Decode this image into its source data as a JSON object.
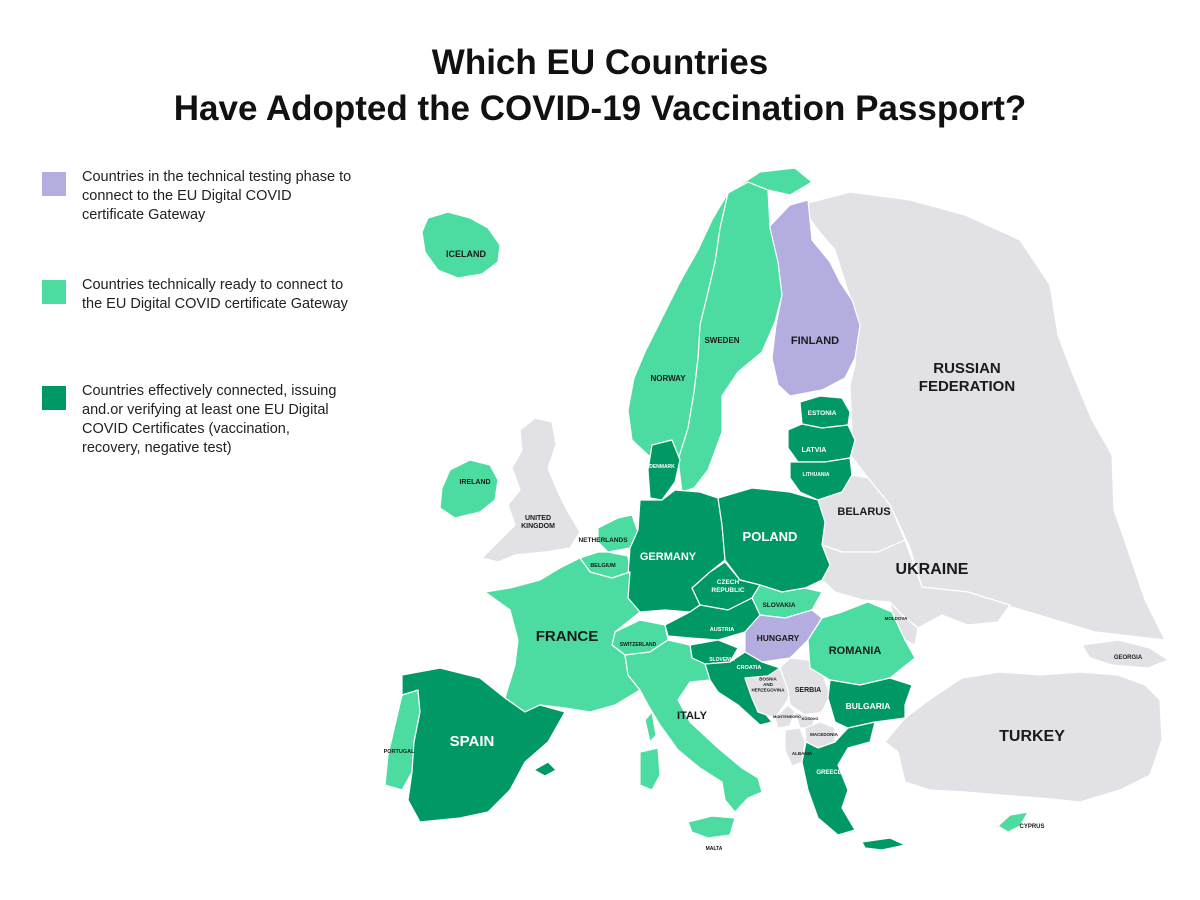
{
  "title": {
    "line1": "Which EU Countries",
    "line2": "Have Adopted the COVID-19 Vaccination Passport?"
  },
  "colors": {
    "testing": "#b4addf",
    "ready": "#4cdba0",
    "connected": "#009966",
    "other": "#e2e2e6"
  },
  "legend": [
    {
      "status": "testing",
      "text": "Countries in the technical testing phase to connect to the EU Digital COVID certificate Gateway"
    },
    {
      "status": "ready",
      "text": "Countries technically ready to connect to the EU Digital COVID certificate Gateway"
    },
    {
      "status": "connected",
      "text": "Countries effectively connected, issuing and.or verifying at least one EU Digital COVID Certificates (vaccination, recovery, negative test)"
    }
  ],
  "countries": {
    "iceland": {
      "label": "ICELAND",
      "status": "ready"
    },
    "ireland": {
      "label": "IRELAND",
      "status": "ready"
    },
    "uk": {
      "label": "UNITED KINGDOM",
      "status": "other"
    },
    "norway": {
      "label": "NORWAY",
      "status": "ready"
    },
    "sweden": {
      "label": "SWEDEN",
      "status": "ready"
    },
    "finland": {
      "label": "FINLAND",
      "status": "testing"
    },
    "russia": {
      "label": "RUSSIAN FEDERATION",
      "status": "other"
    },
    "estonia": {
      "label": "ESTONIA",
      "status": "connected"
    },
    "latvia": {
      "label": "LATVIA",
      "status": "connected"
    },
    "lithuania": {
      "label": "LITHUANIA",
      "status": "connected"
    },
    "denmark": {
      "label": "DENMARK",
      "status": "connected"
    },
    "netherlands": {
      "label": "NETHERLANDS",
      "status": "ready"
    },
    "belgium": {
      "label": "BELGIUM",
      "status": "ready"
    },
    "germany": {
      "label": "GERMANY",
      "status": "connected"
    },
    "poland": {
      "label": "POLAND",
      "status": "connected"
    },
    "belarus": {
      "label": "BELARUS",
      "status": "other"
    },
    "ukraine": {
      "label": "UKRAINE",
      "status": "other"
    },
    "czech": {
      "label": "CZECH REPUBLIC",
      "status": "connected"
    },
    "slovakia": {
      "label": "SLOVAKIA",
      "status": "ready"
    },
    "austria": {
      "label": "AUSTRIA",
      "status": "connected"
    },
    "hungary": {
      "label": "HUNGARY",
      "status": "testing"
    },
    "france": {
      "label": "FRANCE",
      "status": "ready"
    },
    "switzerland": {
      "label": "SWITZERLAND",
      "status": "ready"
    },
    "slovenia": {
      "label": "SLOVENIA",
      "status": "connected"
    },
    "croatia": {
      "label": "CROATIA",
      "status": "connected"
    },
    "moldova": {
      "label": "MOLDOVA",
      "status": "other"
    },
    "romania": {
      "label": "ROMANIA",
      "status": "ready"
    },
    "georgia": {
      "label": "GEORGIA",
      "status": "other"
    },
    "bosnia": {
      "label": "BOSNIA AND HERZEGOVINA",
      "status": "other"
    },
    "serbia": {
      "label": "SERBIA",
      "status": "other"
    },
    "montenegro": {
      "label": "MONTENEGRO",
      "status": "other"
    },
    "kosovo": {
      "label": "KOSOVO",
      "status": "other"
    },
    "macedonia": {
      "label": "MACEDONIA",
      "status": "other"
    },
    "albania": {
      "label": "ALBANIA",
      "status": "other"
    },
    "bulgaria": {
      "label": "BULGARIA",
      "status": "connected"
    },
    "spain": {
      "label": "SPAIN",
      "status": "connected"
    },
    "portugal": {
      "label": "PORTUGAL",
      "status": "ready"
    },
    "italy": {
      "label": "ITALY",
      "status": "ready"
    },
    "greece": {
      "label": "GREECE",
      "status": "connected"
    },
    "turkey": {
      "label": "TURKEY",
      "status": "other"
    },
    "cyprus": {
      "label": "CYPRUS",
      "status": "ready"
    },
    "malta": {
      "label": "MALTA",
      "status": "other"
    }
  }
}
